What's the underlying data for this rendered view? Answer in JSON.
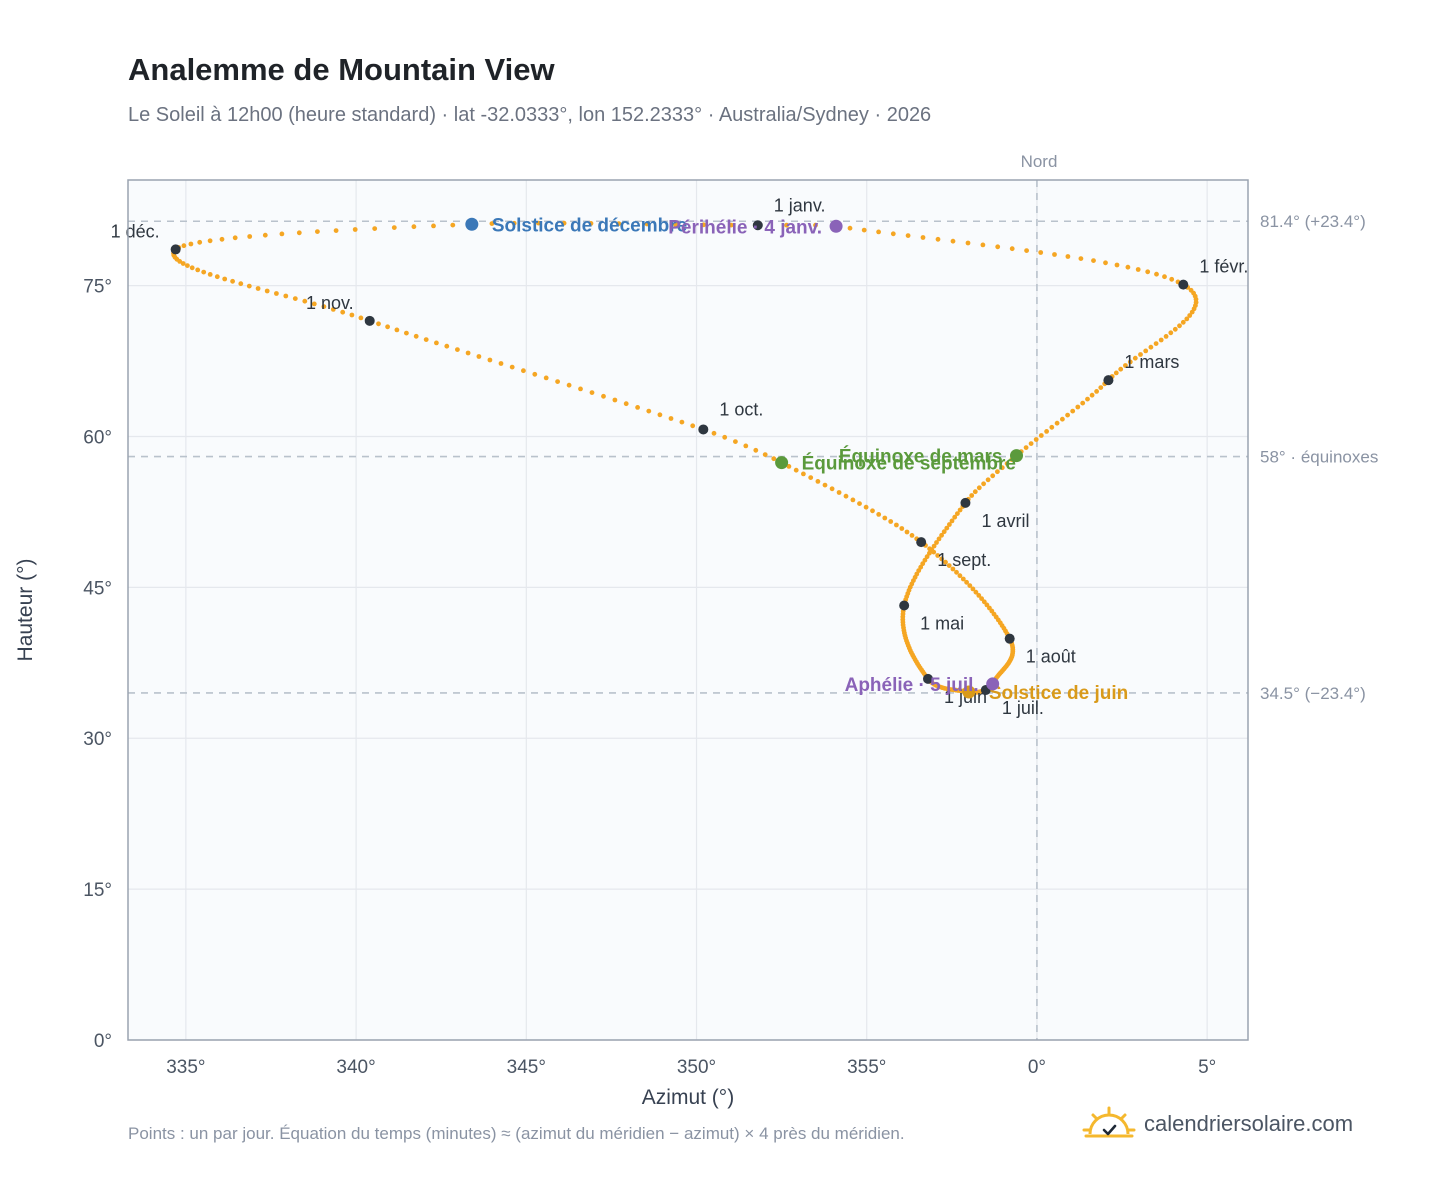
{
  "header": {
    "title": "Analemme de Mountain View",
    "subtitle": "Le Soleil à 12h00 (heure standard) · lat -32.0333°, lon 152.2333° · Australia/Sydney · 2026"
  },
  "footer": {
    "note": "Points : un par jour. Équation du temps (minutes) ≈ (azimut du méridien − azimut) × 4 près du méridien.",
    "brand": "calendriersolaire.com"
  },
  "colors": {
    "curve": "#f5a623",
    "month_marker": "#2f3740",
    "solstice_dec": "#3b78b8",
    "solstice_jun": "#d99a1a",
    "equinox": "#5b9a3c",
    "perihelion": "#8a63b8",
    "grid": "#e5e8ed",
    "plot_bg": "#f9fbfd",
    "frame": "#9aa3b0",
    "guide": "#b9c2cc"
  },
  "chart_data": {
    "type": "scatter",
    "title": "Analemme de Mountain View",
    "xlabel": "Azimut (°)",
    "ylabel": "Hauteur (°)",
    "x_ticks": [
      {
        "value": -25,
        "label": "335°"
      },
      {
        "value": -20,
        "label": "340°"
      },
      {
        "value": -15,
        "label": "345°"
      },
      {
        "value": -10,
        "label": "350°"
      },
      {
        "value": -5,
        "label": "355°"
      },
      {
        "value": 0,
        "label": "0°"
      },
      {
        "value": 5,
        "label": "5°"
      }
    ],
    "y_ticks": [
      {
        "value": 0,
        "label": "0°"
      },
      {
        "value": 15,
        "label": "15°"
      },
      {
        "value": 30,
        "label": "30°"
      },
      {
        "value": 45,
        "label": "45°"
      },
      {
        "value": 60,
        "label": "60°"
      },
      {
        "value": 75,
        "label": "75°"
      }
    ],
    "xlim": [
      -26.7,
      6.2
    ],
    "ylim": [
      0,
      85.5
    ],
    "grid": true,
    "north_line": {
      "value": 0,
      "label": "Nord"
    },
    "reference_lines": [
      {
        "value": 81.4,
        "label": "81.4° (+23.4°)"
      },
      {
        "value": 58.0,
        "label": "58° · équinoxes"
      },
      {
        "value": 34.5,
        "label": "34.5° (−23.4°)"
      }
    ],
    "series": [
      {
        "name": "",
        "anchors": [
          {
            "day": 1,
            "az": -8.2,
            "alt": 81.0
          },
          {
            "day": 4,
            "az": -5.9,
            "alt": 80.9
          },
          {
            "day": 32,
            "az": 4.3,
            "alt": 75.1
          },
          {
            "day": 60,
            "az": 2.1,
            "alt": 65.6
          },
          {
            "day": 79,
            "az": -0.6,
            "alt": 58.1
          },
          {
            "day": 91,
            "az": -2.1,
            "alt": 53.4
          },
          {
            "day": 121,
            "az": -3.9,
            "alt": 43.2
          },
          {
            "day": 152,
            "az": -3.2,
            "alt": 35.9
          },
          {
            "day": 172,
            "az": -2.0,
            "alt": 34.6
          },
          {
            "day": 182,
            "az": -1.5,
            "alt": 34.8
          },
          {
            "day": 186,
            "az": -1.3,
            "alt": 35.4
          },
          {
            "day": 213,
            "az": -0.8,
            "alt": 39.9
          },
          {
            "day": 244,
            "az": -3.4,
            "alt": 49.5
          },
          {
            "day": 266,
            "az": -7.5,
            "alt": 57.4
          },
          {
            "day": 274,
            "az": -9.8,
            "alt": 60.7
          },
          {
            "day": 305,
            "az": -19.6,
            "alt": 71.5
          },
          {
            "day": 335,
            "az": -25.3,
            "alt": 78.6
          },
          {
            "day": 355,
            "az": -16.6,
            "alt": 81.1
          },
          {
            "day": 366,
            "az": -8.2,
            "alt": 81.0
          }
        ]
      }
    ],
    "month_markers": [
      {
        "label": "1 janv.",
        "az": -8.2,
        "alt": 81.0,
        "pos": "above-right"
      },
      {
        "label": "1 févr.",
        "az": 4.3,
        "alt": 75.1,
        "pos": "right"
      },
      {
        "label": "1 mars",
        "az": 2.1,
        "alt": 65.6,
        "pos": "right"
      },
      {
        "label": "1 avril",
        "az": -2.1,
        "alt": 53.4,
        "pos": "below-right"
      },
      {
        "label": "1 mai",
        "az": -3.9,
        "alt": 43.2,
        "pos": "below-right"
      },
      {
        "label": "1 juin",
        "az": -3.2,
        "alt": 35.9,
        "pos": "below-right"
      },
      {
        "label": "1 juil.",
        "az": -1.5,
        "alt": 34.8,
        "pos": "below-right"
      },
      {
        "label": "1 août",
        "az": -0.8,
        "alt": 39.9,
        "pos": "below-right"
      },
      {
        "label": "1 sept.",
        "az": -3.4,
        "alt": 49.5,
        "pos": "below-right"
      },
      {
        "label": "1 oct.",
        "az": -9.8,
        "alt": 60.7,
        "pos": "above-right"
      },
      {
        "label": "1 nov.",
        "az": -19.6,
        "alt": 71.5,
        "pos": "above-left"
      },
      {
        "label": "1 déc.",
        "az": -25.3,
        "alt": 78.6,
        "pos": "above-left"
      }
    ],
    "events": [
      {
        "label": "Solstice de décembre",
        "az": -16.6,
        "alt": 81.1,
        "color_key": "solstice_dec"
      },
      {
        "label": "Périhélie · 4 janv.",
        "az": -5.9,
        "alt": 80.9,
        "color_key": "perihelion",
        "anchor": "end"
      },
      {
        "label": "Équinoxe de mars",
        "az": -0.6,
        "alt": 58.1,
        "color_key": "equinox",
        "anchor": "end"
      },
      {
        "label": "Équinoxe de septembre",
        "az": -7.5,
        "alt": 57.4,
        "color_key": "equinox"
      },
      {
        "label": "Solstice de juin",
        "az": -2.0,
        "alt": 34.6,
        "color_key": "solstice_jun"
      },
      {
        "label": "Aphélie · 5 juil.",
        "az": -1.3,
        "alt": 35.4,
        "color_key": "perihelion",
        "anchor": "end"
      }
    ]
  }
}
